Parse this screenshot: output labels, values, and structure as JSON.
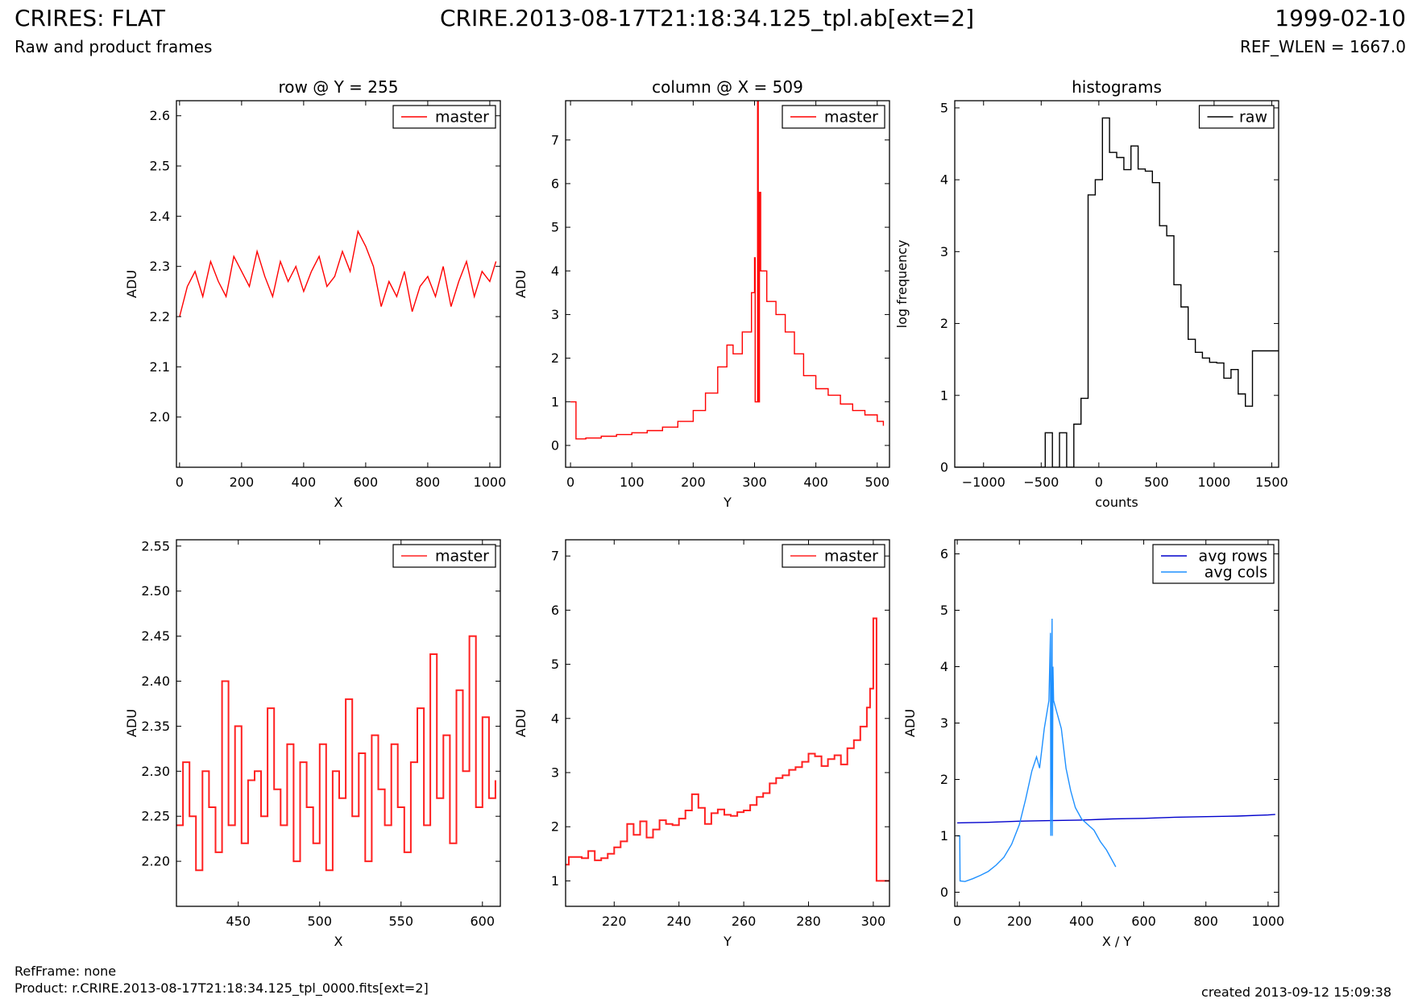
{
  "header": {
    "title": "CRIRES: FLAT",
    "subtitle": "Raw and product frames",
    "file": "CRIRE.2013-08-17T21:18:34.125_tpl.ab[ext=2]",
    "date": "1999-02-10",
    "ref_wlen": "REF_WLEN = 1667.0"
  },
  "footer": {
    "ref_frame": "RefFrame: none",
    "product": "Product: r.CRIRE.2013-08-17T21:18:34.125_tpl_0000.fits[ext=2]",
    "created": "created 2013-09-12 15:09:38"
  },
  "chart_data": [
    {
      "type": "line",
      "title": "row @ Y = 255",
      "xlabel": "X",
      "ylabel": "ADU",
      "xlim": [
        -10,
        1034
      ],
      "ylim": [
        1.9,
        2.63
      ],
      "xticks": [
        0,
        200,
        400,
        600,
        800,
        1000
      ],
      "yticks": [
        2.0,
        2.1,
        2.2,
        2.3,
        2.4,
        2.5,
        2.6
      ],
      "ytick_labels": [
        "2.0",
        "2.1",
        "2.2",
        "2.3",
        "2.4",
        "2.5",
        "2.6"
      ],
      "legend": "top-right",
      "series": [
        {
          "name": "master",
          "color": "#ff0000",
          "drawstyle": "line",
          "x": [
            0,
            25,
            50,
            75,
            100,
            125,
            150,
            175,
            200,
            225,
            250,
            275,
            300,
            325,
            350,
            375,
            400,
            425,
            450,
            475,
            500,
            525,
            550,
            575,
            600,
            625,
            650,
            675,
            700,
            725,
            750,
            775,
            800,
            825,
            850,
            875,
            900,
            925,
            950,
            975,
            1000,
            1020
          ],
          "y": [
            2.2,
            2.26,
            2.29,
            2.24,
            2.31,
            2.27,
            2.24,
            2.32,
            2.29,
            2.26,
            2.33,
            2.28,
            2.24,
            2.31,
            2.27,
            2.3,
            2.25,
            2.29,
            2.32,
            2.26,
            2.28,
            2.33,
            2.29,
            2.37,
            2.34,
            2.3,
            2.22,
            2.27,
            2.24,
            2.29,
            2.21,
            2.26,
            2.28,
            2.24,
            2.3,
            2.22,
            2.27,
            2.31,
            2.24,
            2.29,
            2.27,
            2.31
          ]
        }
      ]
    },
    {
      "type": "line",
      "title": "column @ X = 509",
      "xlabel": "Y",
      "ylabel": "ADU",
      "xlim": [
        -8,
        520
      ],
      "ylim": [
        -0.5,
        7.9
      ],
      "xticks": [
        0,
        100,
        200,
        300,
        400,
        500
      ],
      "yticks": [
        0,
        1,
        2,
        3,
        4,
        5,
        6,
        7
      ],
      "ytick_labels": [
        "0",
        "1",
        "2",
        "3",
        "4",
        "5",
        "6",
        "7"
      ],
      "legend": "top-right",
      "series": [
        {
          "name": "master",
          "color": "#ff0000",
          "drawstyle": "steps",
          "x": [
            0,
            8,
            9,
            25,
            50,
            75,
            100,
            125,
            150,
            175,
            200,
            220,
            240,
            255,
            265,
            280,
            295,
            300,
            301,
            305,
            306,
            308,
            310,
            320,
            335,
            350,
            365,
            380,
            400,
            420,
            440,
            460,
            480,
            500,
            510
          ],
          "y": [
            1.0,
            1.0,
            0.15,
            0.17,
            0.21,
            0.25,
            0.29,
            0.34,
            0.42,
            0.55,
            0.8,
            1.2,
            1.8,
            2.3,
            2.1,
            2.6,
            3.5,
            4.3,
            1.0,
            7.9,
            1.0,
            5.8,
            4.0,
            3.3,
            3.0,
            2.6,
            2.1,
            1.6,
            1.3,
            1.15,
            0.95,
            0.8,
            0.7,
            0.55,
            0.45
          ]
        }
      ]
    },
    {
      "type": "line",
      "title": "histograms",
      "xlabel": "counts",
      "ylabel": "log frequency",
      "xlim": [
        -1250,
        1560
      ],
      "ylim": [
        0,
        5.1
      ],
      "xticks": [
        -1000,
        -500,
        0,
        500,
        1000,
        1500
      ],
      "xtick_labels": [
        "−1000",
        "−500",
        "0",
        "500",
        "1000",
        "1500"
      ],
      "yticks": [
        0,
        1,
        2,
        3,
        4,
        5
      ],
      "ytick_labels": [
        "0",
        "1",
        "2",
        "3",
        "4",
        "5"
      ],
      "legend": "top-right",
      "series": [
        {
          "name": "raw",
          "color": "#000000",
          "drawstyle": "hist",
          "bin_width": 62,
          "x": [
            -1250,
            -527,
            -465,
            -403,
            -341,
            -279,
            -217,
            -155,
            -93,
            -31,
            31,
            93,
            155,
            217,
            279,
            341,
            403,
            465,
            527,
            589,
            651,
            713,
            775,
            837,
            899,
            961,
            1023,
            1085,
            1147,
            1209,
            1271,
            1333,
            1395,
            1457,
            1519
          ],
          "y": [
            0,
            0,
            0.48,
            0,
            0.48,
            0,
            0.6,
            0.96,
            3.79,
            4.0,
            4.86,
            4.38,
            4.31,
            4.14,
            4.47,
            4.15,
            4.12,
            3.96,
            3.36,
            3.22,
            2.54,
            2.23,
            1.78,
            1.6,
            1.52,
            1.46,
            1.45,
            1.24,
            1.36,
            1.02,
            0.85,
            1.62,
            1.62,
            1.62,
            1.62
          ]
        }
      ]
    },
    {
      "type": "line",
      "xlabel": "X",
      "ylabel": "ADU",
      "xlim": [
        412,
        611
      ],
      "ylim": [
        2.15,
        2.557
      ],
      "xticks": [
        450,
        500,
        550,
        600
      ],
      "yticks": [
        2.2,
        2.25,
        2.3,
        2.35,
        2.4,
        2.45,
        2.5,
        2.55
      ],
      "ytick_labels": [
        "2.20",
        "2.25",
        "2.30",
        "2.35",
        "2.40",
        "2.45",
        "2.50",
        "2.55"
      ],
      "legend": "top-right",
      "series": [
        {
          "name": "master",
          "color": "#ff2020",
          "drawstyle": "steps",
          "x": [
            412,
            416,
            420,
            424,
            428,
            432,
            436,
            440,
            444,
            448,
            452,
            456,
            460,
            464,
            468,
            472,
            476,
            480,
            484,
            488,
            492,
            496,
            500,
            504,
            508,
            512,
            516,
            520,
            524,
            528,
            532,
            536,
            540,
            544,
            548,
            552,
            556,
            560,
            564,
            568,
            572,
            576,
            580,
            584,
            588,
            592,
            596,
            600,
            604,
            608
          ],
          "y": [
            2.24,
            2.31,
            2.25,
            2.19,
            2.3,
            2.26,
            2.21,
            2.4,
            2.24,
            2.35,
            2.22,
            2.29,
            2.3,
            2.25,
            2.37,
            2.28,
            2.24,
            2.33,
            2.2,
            2.31,
            2.26,
            2.22,
            2.33,
            2.19,
            2.3,
            2.27,
            2.38,
            2.25,
            2.32,
            2.2,
            2.34,
            2.28,
            2.24,
            2.33,
            2.26,
            2.21,
            2.31,
            2.37,
            2.24,
            2.43,
            2.27,
            2.34,
            2.22,
            2.39,
            2.3,
            2.45,
            2.26,
            2.36,
            2.27,
            2.29
          ]
        }
      ]
    },
    {
      "type": "line",
      "xlabel": "Y",
      "ylabel": "ADU",
      "xlim": [
        205,
        305
      ],
      "ylim": [
        0.53,
        7.3
      ],
      "xticks": [
        220,
        240,
        260,
        280,
        300
      ],
      "yticks": [
        1,
        2,
        3,
        4,
        5,
        6,
        7
      ],
      "ytick_labels": [
        "1",
        "2",
        "3",
        "4",
        "5",
        "6",
        "7"
      ],
      "legend": "top-right",
      "series": [
        {
          "name": "master",
          "color": "#ff2020",
          "drawstyle": "steps",
          "x": [
            205,
            206,
            210,
            212,
            214,
            216,
            218,
            220,
            222,
            224,
            226,
            228,
            230,
            232,
            234,
            236,
            238,
            240,
            242,
            244,
            246,
            248,
            250,
            252,
            254,
            256,
            258,
            260,
            262,
            264,
            266,
            268,
            270,
            272,
            274,
            276,
            278,
            280,
            282,
            284,
            286,
            288,
            290,
            292,
            294,
            296,
            298,
            299,
            300,
            301,
            302,
            305
          ],
          "y": [
            1.3,
            1.44,
            1.42,
            1.55,
            1.38,
            1.42,
            1.5,
            1.62,
            1.73,
            2.05,
            1.85,
            2.1,
            1.8,
            1.95,
            2.12,
            2.05,
            2.03,
            2.15,
            2.3,
            2.6,
            2.35,
            2.05,
            2.25,
            2.32,
            2.22,
            2.2,
            2.27,
            2.3,
            2.4,
            2.55,
            2.62,
            2.8,
            2.9,
            2.95,
            3.05,
            3.1,
            3.2,
            3.35,
            3.3,
            3.12,
            3.25,
            3.32,
            3.15,
            3.45,
            3.6,
            3.85,
            4.2,
            4.55,
            5.85,
            1.0,
            1.0,
            1.0
          ]
        }
      ]
    },
    {
      "type": "line",
      "xlabel": "X / Y",
      "ylabel": "ADU",
      "xlim": [
        -8,
        1034
      ],
      "ylim": [
        -0.25,
        6.25
      ],
      "xticks": [
        0,
        200,
        400,
        600,
        800,
        1000
      ],
      "yticks": [
        0,
        1,
        2,
        3,
        4,
        5,
        6
      ],
      "ytick_labels": [
        "0",
        "1",
        "2",
        "3",
        "4",
        "5",
        "6"
      ],
      "legend": "top-right",
      "series": [
        {
          "name": "avg rows",
          "color": "#0000cc",
          "drawstyle": "line",
          "x": [
            0,
            100,
            200,
            300,
            400,
            500,
            600,
            700,
            800,
            900,
            1000,
            1023
          ],
          "y": [
            1.23,
            1.24,
            1.26,
            1.27,
            1.28,
            1.3,
            1.31,
            1.33,
            1.34,
            1.35,
            1.37,
            1.38
          ]
        },
        {
          "name": "avg cols",
          "color": "#1e90ff",
          "drawstyle": "line",
          "x": [
            0,
            8,
            9,
            25,
            50,
            75,
            100,
            125,
            150,
            175,
            200,
            220,
            240,
            255,
            265,
            280,
            295,
            300,
            301,
            305,
            306,
            308,
            310,
            320,
            335,
            350,
            365,
            380,
            400,
            420,
            440,
            460,
            480,
            500,
            510
          ],
          "y": [
            1.0,
            1.0,
            0.2,
            0.19,
            0.24,
            0.3,
            0.37,
            0.48,
            0.62,
            0.85,
            1.2,
            1.65,
            2.15,
            2.4,
            2.2,
            2.9,
            3.4,
            4.6,
            1.0,
            4.85,
            1.0,
            4.0,
            3.4,
            3.2,
            2.9,
            2.2,
            1.8,
            1.5,
            1.3,
            1.2,
            1.1,
            0.9,
            0.75,
            0.55,
            0.45
          ]
        }
      ]
    }
  ]
}
